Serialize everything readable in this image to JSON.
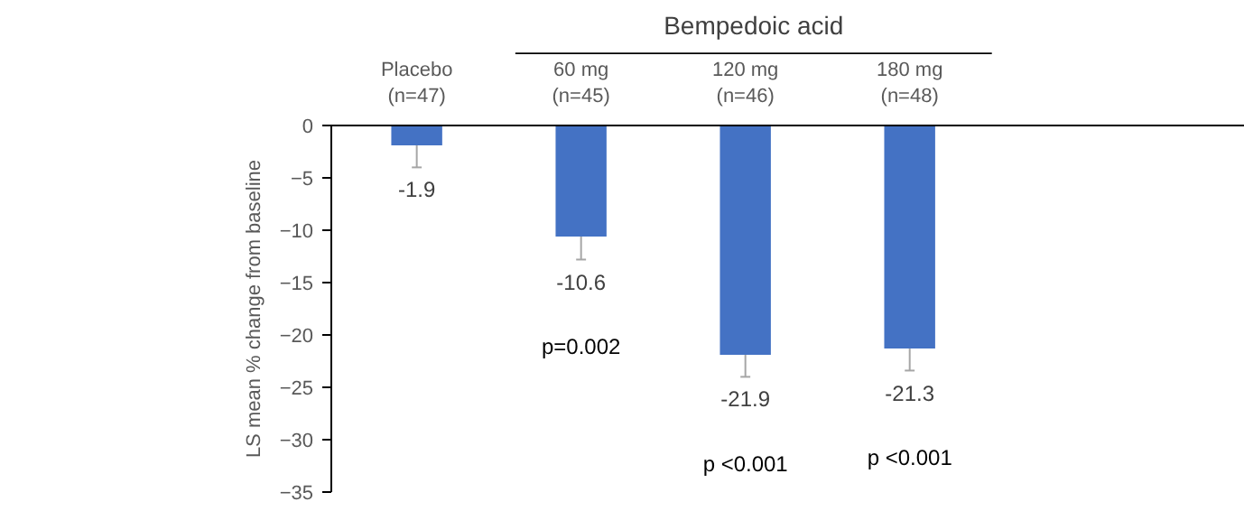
{
  "chart_data": {
    "type": "bar",
    "categories": [
      "Placebo\n(n=47)",
      "60 mg\n(n=45)",
      "120 mg\n(n=46)",
      "180 mg\n(n=48)"
    ],
    "values": [
      -1.9,
      -10.6,
      -21.9,
      -21.3
    ],
    "errors": [
      [
        -4.0,
        -1.9
      ],
      [
        -12.8,
        -10.6
      ],
      [
        -24.0,
        -21.9
      ],
      [
        -23.4,
        -21.3
      ]
    ],
    "color": "#4472c4",
    "data_labels": true,
    "ylabel": "LS mean % change from baseline",
    "ylim": [
      -35,
      0
    ],
    "yticks": [
      0,
      -5,
      -10,
      -15,
      -20,
      -25,
      -30,
      -35
    ],
    "grid": false,
    "annotations": [
      "Bempedoic acid",
      "p=0.002",
      "p <0.001",
      "p <0.001"
    ]
  }
}
